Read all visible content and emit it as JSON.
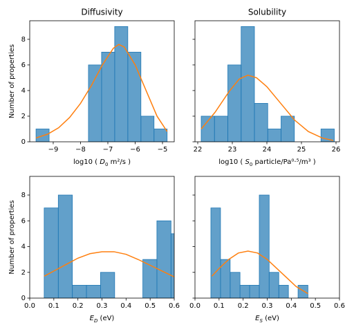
{
  "chart_data": [
    {
      "type": "histogram",
      "title": "Diffusivity",
      "ylabel": "Number of properties",
      "xlabel": [
        {
          "text": "log10 ( "
        },
        {
          "text": "D",
          "italic": true
        },
        {
          "text": "0",
          "sub": true
        },
        {
          "text": " m²/s )"
        }
      ],
      "bins": [
        -9.63,
        -9.15,
        -8.67,
        -8.19,
        -7.71,
        -7.23,
        -6.75,
        -6.27,
        -5.79,
        -5.31,
        -4.83
      ],
      "counts": [
        1,
        0,
        0,
        0,
        6,
        7,
        9,
        7,
        2,
        1
      ],
      "color": "#1f77b4",
      "curve": {
        "color": "#ff7f0e",
        "x": [
          -9.63,
          -9.2,
          -8.8,
          -8.4,
          -8.0,
          -7.6,
          -7.2,
          -6.8,
          -6.6,
          -6.4,
          -6.0,
          -5.6,
          -5.2,
          -4.83
        ],
        "y": [
          0.3,
          0.6,
          1.1,
          1.9,
          3.0,
          4.4,
          6.0,
          7.3,
          7.6,
          7.4,
          6.0,
          4.0,
          2.0,
          0.8
        ]
      },
      "xlim": [
        -9.86,
        -4.57
      ],
      "xticks": [
        {
          "value": -9,
          "label": "−9"
        },
        {
          "value": -8,
          "label": "−8"
        },
        {
          "value": -7,
          "label": "−7"
        },
        {
          "value": -6,
          "label": "−6"
        },
        {
          "value": -5,
          "label": "−5"
        }
      ],
      "ylim": [
        0,
        9.45
      ],
      "yticks": [
        0,
        2,
        4,
        6,
        8
      ],
      "show_ytick_labels": true
    },
    {
      "type": "histogram",
      "title": "Solubility",
      "xlabel": [
        {
          "text": "log10 ( "
        },
        {
          "text": "S",
          "italic": true
        },
        {
          "text": "0",
          "sub": true
        },
        {
          "text": " particle/Pa⁰·⁵/m³ )"
        }
      ],
      "bins": [
        22.1,
        22.485,
        22.87,
        23.255,
        23.64,
        24.025,
        24.41,
        24.795,
        25.18,
        25.565,
        25.95
      ],
      "counts": [
        2,
        2,
        6,
        9,
        3,
        1,
        2,
        0,
        0,
        1
      ],
      "color": "#1f77b4",
      "curve": {
        "color": "#ff7f0e",
        "x": [
          22.1,
          22.5,
          22.9,
          23.2,
          23.45,
          23.7,
          24.0,
          24.4,
          24.8,
          25.2,
          25.6,
          25.92
        ],
        "y": [
          1.0,
          2.3,
          3.9,
          4.9,
          5.2,
          5.0,
          4.3,
          3.0,
          1.7,
          0.8,
          0.3,
          0.1
        ]
      },
      "xlim": [
        21.92,
        26.1
      ],
      "xticks": [
        22,
        23,
        24,
        25,
        26
      ],
      "ylim": [
        0,
        9.45
      ],
      "yticks": [
        0,
        2,
        4,
        6,
        8
      ],
      "show_ytick_labels": false
    },
    {
      "type": "histogram",
      "ylabel": "Number of properties",
      "xlabel": [
        {
          "text": "E",
          "italic": true
        },
        {
          "text": "D",
          "sub": true,
          "italic": true
        },
        {
          "text": " (eV)"
        }
      ],
      "bins": [
        0.06,
        0.1186,
        0.177,
        0.2356,
        0.294,
        0.3526,
        0.411,
        0.4696,
        0.528,
        0.5866,
        0.645
      ],
      "counts": [
        7,
        8,
        1,
        1,
        2,
        0,
        0,
        3,
        6,
        5
      ],
      "color": "#1f77b4",
      "curve": {
        "color": "#ff7f0e",
        "x": [
          0.06,
          0.1,
          0.15,
          0.2,
          0.25,
          0.3,
          0.35,
          0.4,
          0.45,
          0.5,
          0.55,
          0.6
        ],
        "y": [
          1.7,
          2.1,
          2.6,
          3.1,
          3.45,
          3.6,
          3.6,
          3.4,
          3.0,
          2.55,
          2.1,
          1.65
        ]
      },
      "xlim": [
        0,
        0.6
      ],
      "xticks": [
        {
          "value": 0,
          "label": "0.0"
        },
        0.1,
        0.2,
        0.3,
        0.4,
        0.5,
        0.6
      ],
      "ylim": [
        0,
        9.45
      ],
      "yticks": [
        0,
        2,
        4,
        6,
        8
      ],
      "show_ytick_labels": true
    },
    {
      "type": "histogram",
      "xlabel": [
        {
          "text": "E",
          "italic": true
        },
        {
          "text": "S",
          "sub": true,
          "italic": true
        },
        {
          "text": " (eV)"
        }
      ],
      "bins": [
        0.066,
        0.106,
        0.146,
        0.187,
        0.227,
        0.267,
        0.308,
        0.348,
        0.388,
        0.428,
        0.469
      ],
      "counts": [
        7,
        3,
        2,
        1,
        1,
        8,
        2,
        1,
        0,
        1
      ],
      "color": "#1f77b4",
      "curve": {
        "color": "#ff7f0e",
        "x": [
          0.07,
          0.1,
          0.14,
          0.18,
          0.22,
          0.26,
          0.3,
          0.34,
          0.38,
          0.42,
          0.469
        ],
        "y": [
          1.7,
          2.3,
          3.0,
          3.5,
          3.65,
          3.5,
          3.0,
          2.3,
          1.6,
          0.9,
          0.35
        ]
      },
      "xlim": [
        0,
        0.6
      ],
      "xticks": [
        {
          "value": 0,
          "label": "0.0"
        },
        0.1,
        0.2,
        0.3,
        0.4,
        0.5,
        0.6
      ],
      "ylim": [
        0,
        9.45
      ],
      "yticks": [
        0,
        2,
        4,
        6,
        8
      ],
      "show_ytick_labels": false
    }
  ]
}
